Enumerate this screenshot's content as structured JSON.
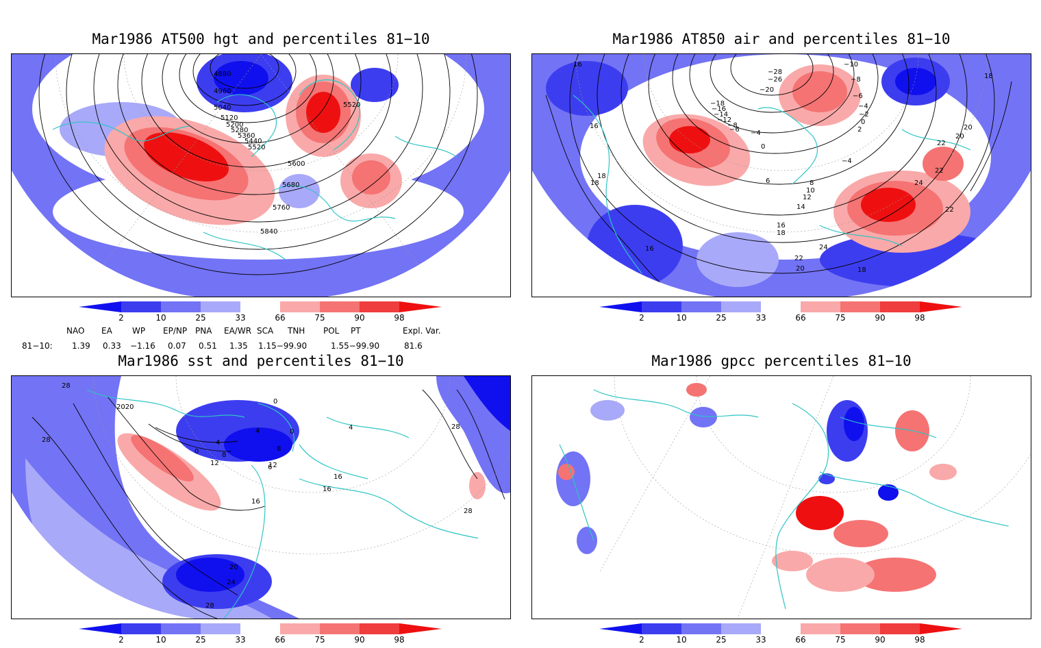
{
  "panels": [
    {
      "title": "Mar1986 AT500 hgt and percentiles 81−10"
    },
    {
      "title": "Mar1986 AT850 air and percentiles 81−10"
    },
    {
      "title": "Mar1986 sst and percentiles 81−10"
    },
    {
      "title": "Mar1986 gpcc percentiles 81−10"
    }
  ],
  "colorbar": {
    "labels": [
      "2",
      "10",
      "25",
      "33",
      "66",
      "75",
      "90",
      "98"
    ],
    "colors": [
      "#1010ee",
      "#3d3df0",
      "#7373f5",
      "#a9a9f9",
      "#ffffff",
      "#f9a9a9",
      "#f57373",
      "#f03d3d",
      "#ee1010"
    ]
  },
  "indices": {
    "row_label": "81−10:",
    "names": [
      "NAO",
      "EA",
      "WP",
      "EP/NP",
      "PNA",
      "EA/WR",
      "SCA",
      "TNH",
      "POL",
      "PT",
      "Expl. Var."
    ],
    "values": [
      "1.39",
      "0.33",
      "−1.16",
      "0.07",
      "0.51",
      "1.35",
      "1.15−99.90",
      "",
      "1.55−99.90",
      "",
      "81.6"
    ]
  },
  "contour_labels": {
    "hgt500": [
      "4880",
      "4960",
      "5040",
      "5120",
      "5200",
      "5280",
      "5360",
      "5440",
      "5520",
      "5520",
      "5600",
      "5680",
      "5760",
      "5840"
    ],
    "air850": [
      "16",
      "16",
      "18",
      "18",
      "16",
      "−10",
      "−8",
      "−6",
      "−4",
      "−2",
      "0",
      "2",
      "20",
      "18",
      "22",
      "22",
      "24",
      "−18",
      "−16",
      "−14",
      "−12",
      "−8",
      "−6",
      "−4",
      "0",
      "−4",
      "6",
      "8",
      "10",
      "12",
      "14",
      "16",
      "18",
      "22",
      "20",
      "24",
      "18",
      "−28",
      "−26",
      "−20",
      "22",
      "20"
    ],
    "sst": [
      "28",
      "28",
      "2020",
      "0",
      "0",
      "4",
      "8",
      "12",
      "16",
      "12",
      "16",
      "20",
      "24",
      "28",
      "4",
      "8",
      "6",
      "16",
      "4",
      "0",
      "28",
      "28"
    ]
  }
}
